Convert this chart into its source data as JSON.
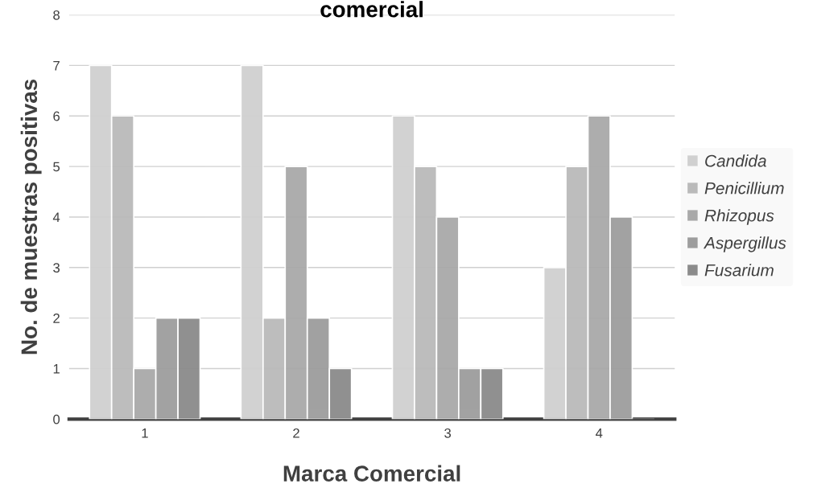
{
  "chart_data": {
    "type": "bar",
    "title": "comercial",
    "xlabel": "Marca Comercial",
    "ylabel": "No. de muestras positivas",
    "categories": [
      "1",
      "2",
      "3",
      "4"
    ],
    "series": [
      {
        "name": "Candida",
        "color": "#d0d0d0",
        "values": [
          7,
          7,
          6,
          3
        ]
      },
      {
        "name": "Penicillium",
        "color": "#bababa",
        "values": [
          6,
          2,
          5,
          5
        ]
      },
      {
        "name": "Rhizopus",
        "color": "#a9a9a9",
        "values": [
          1,
          5,
          4,
          6
        ]
      },
      {
        "name": "Aspergillus",
        "color": "#9d9d9d",
        "values": [
          2,
          2,
          1,
          4
        ]
      },
      {
        "name": "Fusarium",
        "color": "#8b8b8b",
        "values": [
          2,
          1,
          1,
          0
        ]
      }
    ],
    "ylim": [
      0,
      8
    ],
    "yticks": [
      0,
      1,
      2,
      3,
      4,
      5,
      6,
      7,
      8
    ],
    "grid": "y",
    "legend": "right"
  }
}
